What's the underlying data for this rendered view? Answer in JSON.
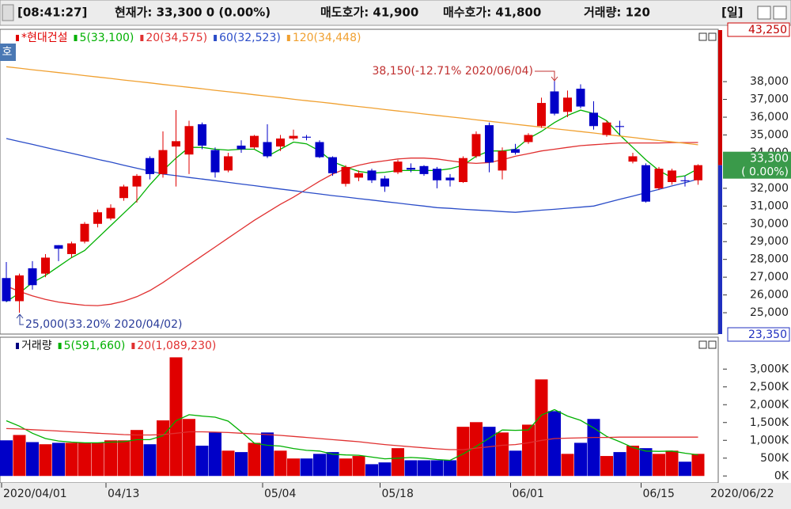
{
  "header": {
    "items": [
      "[08:41:27]",
      "현재가: 33,300 0 (0.00%)",
      "매도호가: 41,900",
      "매수호가: 41,800",
      "거래량: 120",
      "[일]"
    ],
    "side_button": "호"
  },
  "chart_data": [
    {
      "type": "candlestick",
      "name": "*현대건설",
      "up_color": "#e00000",
      "down_color": "#0000c8",
      "categories": [
        "2020/04/01",
        null,
        null,
        null,
        null,
        null,
        null,
        null,
        "04/13",
        null,
        null,
        null,
        null,
        null,
        null,
        null,
        null,
        null,
        null,
        null,
        "05/04",
        null,
        null,
        null,
        null,
        null,
        null,
        null,
        null,
        "05/18",
        null,
        null,
        null,
        null,
        null,
        null,
        null,
        null,
        null,
        "06/01",
        null,
        null,
        null,
        null,
        null,
        null,
        null,
        null,
        null,
        "06/15",
        null,
        null,
        null,
        null
      ],
      "end_label": "2020/06/22",
      "open": [
        26950,
        25650,
        27500,
        27200,
        28800,
        28300,
        29000,
        30000,
        30300,
        31450,
        32100,
        33700,
        32800,
        34350,
        33900,
        35600,
        34150,
        33000,
        34400,
        34300,
        34600,
        34350,
        34800,
        34900,
        34600,
        33750,
        32250,
        32600,
        33000,
        32550,
        32900,
        33150,
        33250,
        33100,
        32600,
        32350,
        33800,
        35550,
        33000,
        34200,
        34600,
        35500,
        37450,
        36300,
        37600,
        36250,
        35000,
        35500,
        33500,
        33300,
        32000,
        32350,
        32450,
        32450
      ],
      "high": [
        27850,
        27200,
        27900,
        28300,
        28800,
        29000,
        30100,
        30800,
        31100,
        32200,
        32800,
        33800,
        35200,
        36400,
        35800,
        35700,
        34300,
        34000,
        34700,
        35000,
        35600,
        35000,
        35300,
        35000,
        34700,
        33800,
        33300,
        33000,
        33100,
        32700,
        33600,
        33400,
        33300,
        33200,
        32800,
        33800,
        35200,
        35700,
        34300,
        34500,
        35100,
        37100,
        38150,
        37500,
        37850,
        36900,
        35800,
        35800,
        34000,
        33400,
        33200,
        33100,
        32700,
        33350
      ],
      "low": [
        25600,
        25000,
        26300,
        27000,
        27900,
        28100,
        28900,
        29800,
        30200,
        31300,
        31200,
        32500,
        32600,
        32100,
        32800,
        34200,
        32600,
        32900,
        34000,
        34200,
        33700,
        34100,
        34700,
        34700,
        33700,
        32700,
        32100,
        32400,
        32300,
        31800,
        32800,
        32900,
        32700,
        32000,
        32100,
        32300,
        33700,
        32900,
        32500,
        33900,
        34500,
        35400,
        36100,
        36000,
        36500,
        35300,
        34900,
        35000,
        33400,
        31200,
        31900,
        32200,
        32100,
        32200
      ],
      "close": [
        25650,
        27100,
        26550,
        28100,
        28600,
        28900,
        30000,
        30650,
        30900,
        32100,
        32700,
        32800,
        34150,
        34650,
        35500,
        34400,
        32900,
        33800,
        34200,
        34950,
        33800,
        34800,
        34950,
        34850,
        33750,
        32850,
        33200,
        32850,
        32450,
        32100,
        33500,
        33050,
        32800,
        32450,
        32450,
        33700,
        35050,
        33450,
        34100,
        34000,
        35000,
        36800,
        36200,
        37100,
        36600,
        35500,
        35700,
        35450,
        33800,
        31250,
        33100,
        33000,
        32400,
        33300
      ],
      "series": [
        {
          "name": "5(33,100)",
          "color": "#00b000",
          "values": [
            25630,
            26100,
            26700,
            27100,
            27600,
            28100,
            28500,
            29200,
            29900,
            30600,
            31300,
            32200,
            33000,
            33700,
            34300,
            34300,
            34200,
            34150,
            34200,
            34200,
            33800,
            34200,
            34600,
            34500,
            34100,
            33500,
            33200,
            32950,
            32850,
            32900,
            33000,
            33000,
            33000,
            33000,
            33100,
            33300,
            33800,
            34100,
            34100,
            34200,
            34800,
            35200,
            35700,
            36100,
            36400,
            36200,
            35800,
            35000,
            34300,
            33600,
            33000,
            32600,
            32700,
            33100
          ]
        },
        {
          "name": "20(34,575)",
          "color": "#e03030",
          "values": [
            26500,
            26200,
            25950,
            25750,
            25600,
            25500,
            25420,
            25400,
            25480,
            25650,
            25900,
            26250,
            26700,
            27200,
            27700,
            28200,
            28700,
            29200,
            29700,
            30200,
            30650,
            31100,
            31500,
            31950,
            32400,
            32800,
            33100,
            33300,
            33450,
            33550,
            33650,
            33700,
            33700,
            33650,
            33550,
            33450,
            33400,
            33450,
            33600,
            33800,
            33950,
            34100,
            34200,
            34300,
            34400,
            34450,
            34500,
            34550,
            34550,
            34550,
            34550,
            34570,
            34570,
            34575
          ]
        },
        {
          "name": "60(32,523)",
          "color": "#2a4cc8",
          "values": [
            34800,
            34630,
            34470,
            34300,
            34130,
            33970,
            33800,
            33630,
            33470,
            33300,
            33130,
            32970,
            32800,
            32710,
            32610,
            32520,
            32430,
            32330,
            32240,
            32150,
            32050,
            31960,
            31870,
            31770,
            31680,
            31590,
            31510,
            31420,
            31340,
            31250,
            31170,
            31080,
            31000,
            30910,
            30870,
            30820,
            30780,
            30740,
            30690,
            30650,
            30710,
            30770,
            30820,
            30880,
            30940,
            31000,
            31190,
            31380,
            31560,
            31750,
            31940,
            32130,
            32310,
            32523
          ]
        },
        {
          "name": "120(34,448)",
          "color": "#f0a030",
          "values": [
            38840,
            38760,
            38670,
            38590,
            38510,
            38430,
            38340,
            38260,
            38180,
            38090,
            38010,
            37930,
            37840,
            37760,
            37680,
            37600,
            37510,
            37430,
            37350,
            37260,
            37180,
            37100,
            37010,
            36930,
            36850,
            36770,
            36680,
            36600,
            36520,
            36430,
            36350,
            36270,
            36180,
            36100,
            36020,
            35940,
            35850,
            35770,
            35690,
            35600,
            35520,
            35440,
            35350,
            35270,
            35190,
            35110,
            35020,
            34940,
            34860,
            34770,
            34690,
            34610,
            34530,
            34448
          ]
        }
      ],
      "ylim": [
        23800,
        40900
      ],
      "yticks": [
        {
          "value": 25000,
          "label": "25,000"
        },
        {
          "value": 26000,
          "label": "26,000"
        },
        {
          "value": 27000,
          "label": "27,000"
        },
        {
          "value": 28000,
          "label": "28,000"
        },
        {
          "value": 29000,
          "label": "29,000"
        },
        {
          "value": 30000,
          "label": "30,000"
        },
        {
          "value": 31000,
          "label": "31,000"
        },
        {
          "value": 32000,
          "label": "32,000"
        },
        {
          "value": 33000,
          "label": "33,000"
        },
        {
          "value": 34000,
          "label": "34,000"
        },
        {
          "value": 35000,
          "label": "35,000"
        },
        {
          "value": 36000,
          "label": "36,000"
        },
        {
          "value": 37000,
          "label": "37,000"
        },
        {
          "value": 38000,
          "label": "38,000"
        }
      ],
      "grid": false,
      "current": {
        "value": 33300,
        "label": "33,300"
      },
      "current_change": "( 0.00%)",
      "range_labels": [
        "43,250",
        "23,350"
      ],
      "annotations": [
        "38,150(-12.71% 2020/06/04)",
        "25,000(33.20% 2020/04/02)"
      ]
    },
    {
      "type": "bar",
      "name": "거래량",
      "values": [
        1000000,
        1150000,
        950000,
        890000,
        930000,
        930000,
        930000,
        930000,
        1000000,
        1000000,
        1290000,
        890000,
        1560000,
        3330000,
        1600000,
        850000,
        1220000,
        710000,
        670000,
        930000,
        1220000,
        710000,
        490000,
        490000,
        620000,
        670000,
        490000,
        560000,
        330000,
        380000,
        780000,
        440000,
        440000,
        440000,
        440000,
        1380000,
        1510000,
        1380000,
        1220000,
        710000,
        1440000,
        2710000,
        1820000,
        620000,
        930000,
        1600000,
        560000,
        670000,
        850000,
        780000,
        620000,
        710000,
        400000,
        620000
      ],
      "series": [
        {
          "name": "5(591,660)",
          "color": "#00b000",
          "values": [
            1550000,
            1400000,
            1200000,
            1050000,
            980000,
            950000,
            930000,
            930000,
            950000,
            960000,
            1020000,
            1020000,
            1130000,
            1550000,
            1720000,
            1680000,
            1650000,
            1540000,
            1240000,
            920000,
            860000,
            840000,
            770000,
            720000,
            700000,
            610000,
            590000,
            580000,
            530000,
            480000,
            500000,
            520000,
            500000,
            460000,
            440000,
            620000,
            830000,
            1060000,
            1290000,
            1280000,
            1290000,
            1710000,
            1860000,
            1680000,
            1560000,
            1350000,
            1110000,
            960000,
            800000,
            700000,
            690000,
            700000,
            640000,
            591660
          ]
        },
        {
          "name": "20(1,089,230)",
          "color": "#e03030",
          "values": [
            1330000,
            1320000,
            1300000,
            1280000,
            1260000,
            1240000,
            1220000,
            1200000,
            1180000,
            1160000,
            1150000,
            1150000,
            1160000,
            1200000,
            1240000,
            1240000,
            1230000,
            1220000,
            1200000,
            1180000,
            1160000,
            1140000,
            1110000,
            1080000,
            1050000,
            1020000,
            990000,
            960000,
            920000,
            880000,
            850000,
            820000,
            790000,
            760000,
            740000,
            740000,
            780000,
            820000,
            860000,
            880000,
            930000,
            1000000,
            1050000,
            1060000,
            1070000,
            1080000,
            1080000,
            1090000,
            1090000,
            1090000,
            1090000,
            1089000,
            1089000,
            1089230
          ]
        }
      ],
      "ylim": [
        -150000,
        3850000
      ],
      "yticks": [
        {
          "value": 0,
          "label": "0K"
        },
        {
          "value": 500000,
          "label": "500K"
        },
        {
          "value": 1000000,
          "label": "1,000K"
        },
        {
          "value": 1500000,
          "label": "1,500K"
        },
        {
          "value": 2000000,
          "label": "2,000K"
        },
        {
          "value": 2500000,
          "label": "2,500K"
        },
        {
          "value": 3000000,
          "label": "3,000K"
        }
      ],
      "grid": false
    }
  ]
}
